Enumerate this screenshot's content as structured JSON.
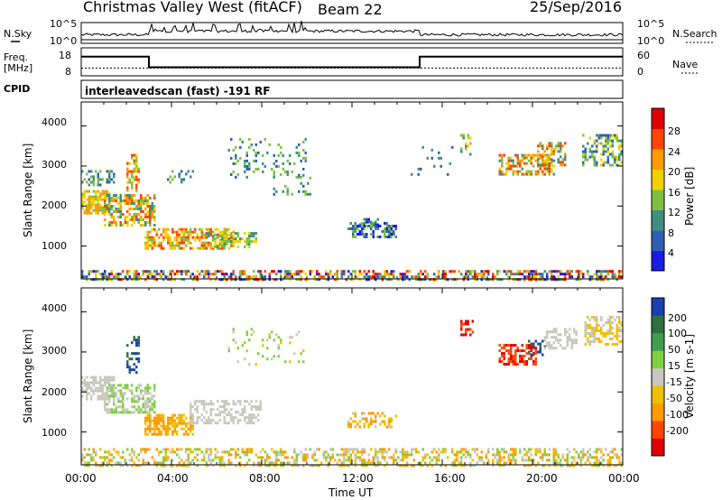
{
  "header": {
    "title": "Christmas Valley West (fitACF)",
    "beam": "Beam 22",
    "date": "25/Sep/2016"
  },
  "side_labels": {
    "nsky": "N.Sky",
    "nsearch": "N.Search",
    "freq_line1": "Freq.",
    "freq_line2": "[MHz]",
    "nave": "Nave",
    "cpid": "CPID"
  },
  "cpid_text": "interleavedscan (fast) -191 RF",
  "noise_panel": {
    "left_ticks": [
      "10^5",
      "10^0"
    ],
    "right_ticks": [
      "10^5",
      "10^0"
    ]
  },
  "freq_panel": {
    "left_ticks": [
      "18",
      "8"
    ],
    "right_ticks": [
      "60",
      "0"
    ],
    "freq_steps": [
      {
        "from": 0,
        "to": 3,
        "value": 15.5
      },
      {
        "from": 3,
        "to": 15,
        "value": 10.4
      },
      {
        "from": 15,
        "to": 24,
        "value": 15.5
      }
    ],
    "nave_level": 12
  },
  "x_axis": {
    "label": "Time UT",
    "ticks": [
      "00:00",
      "04:00",
      "08:00",
      "12:00",
      "16:00",
      "20:00",
      "00:00"
    ],
    "range": [
      0,
      24
    ]
  },
  "chart_data": [
    {
      "type": "heatmap",
      "name": "power",
      "ylabel": "Slant Range [km]",
      "yticks": [
        "4000",
        "3000",
        "2000",
        "1000"
      ],
      "ylim": [
        180,
        4600
      ],
      "colorbar_label": "Power [dB]",
      "colorbar_ticks": [
        "28",
        "24",
        "20",
        "16",
        "12",
        "8",
        "4"
      ],
      "colors": [
        "#1a1ae6",
        "#2f5fb4",
        "#3f8f7f",
        "#7fbf3f",
        "#f0d000",
        "#ff9a00",
        "#ff4500",
        "#e00000"
      ],
      "regions": [
        {
          "t0": 0.0,
          "t1": 1.3,
          "r0": 1800,
          "r1": 2400,
          "c": [
            3,
            5
          ],
          "d": 0.7
        },
        {
          "t0": 0.0,
          "t1": 1.5,
          "r0": 2500,
          "r1": 2900,
          "c": [
            1,
            3
          ],
          "d": 0.45
        },
        {
          "t0": 1.0,
          "t1": 3.3,
          "r0": 1500,
          "r1": 2300,
          "c": [
            2,
            6
          ],
          "d": 0.6
        },
        {
          "t0": 2.0,
          "t1": 2.6,
          "r0": 2400,
          "r1": 3300,
          "c": [
            3,
            6
          ],
          "d": 0.5
        },
        {
          "t0": 2.8,
          "t1": 6.8,
          "r0": 950,
          "r1": 1450,
          "c": [
            3,
            6
          ],
          "d": 0.65
        },
        {
          "t0": 5.5,
          "t1": 7.8,
          "r0": 1000,
          "r1": 1350,
          "c": [
            2,
            4
          ],
          "d": 0.45
        },
        {
          "t0": 3.8,
          "t1": 5.0,
          "r0": 2600,
          "r1": 2900,
          "c": [
            1,
            3
          ],
          "d": 0.35
        },
        {
          "t0": 6.5,
          "t1": 10.0,
          "r0": 2700,
          "r1": 3700,
          "c": [
            1,
            3
          ],
          "d": 0.18
        },
        {
          "t0": 8.5,
          "t1": 10.2,
          "r0": 2300,
          "r1": 2800,
          "c": [
            1,
            3
          ],
          "d": 0.15
        },
        {
          "t0": 11.8,
          "t1": 13.9,
          "r0": 1250,
          "r1": 1600,
          "c": [
            0,
            3
          ],
          "d": 0.55
        },
        {
          "t0": 12.3,
          "t1": 13.2,
          "r0": 1500,
          "r1": 1700,
          "c": [
            0,
            2
          ],
          "d": 0.4
        },
        {
          "t0": 14.5,
          "t1": 16.5,
          "r0": 2800,
          "r1": 3500,
          "c": [
            1,
            2
          ],
          "d": 0.08
        },
        {
          "t0": 16.8,
          "t1": 17.3,
          "r0": 3300,
          "r1": 3800,
          "c": [
            2,
            5
          ],
          "d": 0.45
        },
        {
          "t0": 18.5,
          "t1": 21.0,
          "r0": 2800,
          "r1": 3300,
          "c": [
            2,
            6
          ],
          "d": 0.55
        },
        {
          "t0": 20.2,
          "t1": 21.5,
          "r0": 3000,
          "r1": 3600,
          "c": [
            2,
            6
          ],
          "d": 0.45
        },
        {
          "t0": 22.2,
          "t1": 24.0,
          "r0": 3000,
          "r1": 3800,
          "c": [
            1,
            4
          ],
          "d": 0.5
        },
        {
          "t0": 0.0,
          "t1": 24.0,
          "r0": 180,
          "r1": 400,
          "c": [
            0,
            7
          ],
          "d": 0.55
        }
      ]
    },
    {
      "type": "heatmap",
      "name": "velocity",
      "ylabel": "Slant Range [km]",
      "yticks": [
        "4000",
        "3000",
        "2000",
        "1000"
      ],
      "ylim": [
        180,
        4600
      ],
      "colorbar_label": "Velocity [m s-1]",
      "colorbar_ticks": [
        "200",
        "100",
        "50",
        "15",
        "-15",
        "-50",
        "-100",
        "-200"
      ],
      "colors": [
        "#e00000",
        "#ff4500",
        "#ff9a00",
        "#f0c000",
        "#c8c8c0",
        "#7fd040",
        "#3f9f4f",
        "#2f6f3f",
        "#1a3fb0"
      ],
      "regions": [
        {
          "t0": 0.0,
          "t1": 1.5,
          "r0": 1800,
          "r1": 2400,
          "c": [
            4,
            4
          ],
          "d": 0.75
        },
        {
          "t0": 1.0,
          "t1": 3.3,
          "r0": 1500,
          "r1": 2200,
          "c": [
            4,
            5
          ],
          "d": 0.55
        },
        {
          "t0": 2.0,
          "t1": 2.6,
          "r0": 2500,
          "r1": 3400,
          "c": [
            7,
            8
          ],
          "d": 0.45
        },
        {
          "t0": 2.8,
          "t1": 5.0,
          "r0": 950,
          "r1": 1450,
          "c": [
            2,
            3
          ],
          "d": 0.65
        },
        {
          "t0": 4.8,
          "t1": 8.0,
          "r0": 1200,
          "r1": 1800,
          "c": [
            4,
            4
          ],
          "d": 0.45
        },
        {
          "t0": 6.5,
          "t1": 10.0,
          "r0": 2700,
          "r1": 3600,
          "c": [
            3,
            5
          ],
          "d": 0.15
        },
        {
          "t0": 11.8,
          "t1": 13.9,
          "r0": 1150,
          "r1": 1500,
          "c": [
            2,
            4
          ],
          "d": 0.45
        },
        {
          "t0": 16.8,
          "t1": 17.4,
          "r0": 3400,
          "r1": 3800,
          "c": [
            0,
            1
          ],
          "d": 0.5
        },
        {
          "t0": 18.5,
          "t1": 20.2,
          "r0": 2700,
          "r1": 3200,
          "c": [
            0,
            1
          ],
          "d": 0.55
        },
        {
          "t0": 19.8,
          "t1": 20.6,
          "r0": 2900,
          "r1": 3300,
          "c": [
            7,
            8
          ],
          "d": 0.45
        },
        {
          "t0": 20.5,
          "t1": 22.0,
          "r0": 3100,
          "r1": 3600,
          "c": [
            4,
            4
          ],
          "d": 0.45
        },
        {
          "t0": 22.3,
          "t1": 24.0,
          "r0": 3200,
          "r1": 3900,
          "c": [
            3,
            4
          ],
          "d": 0.5
        },
        {
          "t0": 0.0,
          "t1": 24.0,
          "r0": 180,
          "r1": 600,
          "c": [
            2,
            5
          ],
          "d": 0.45
        }
      ]
    }
  ]
}
